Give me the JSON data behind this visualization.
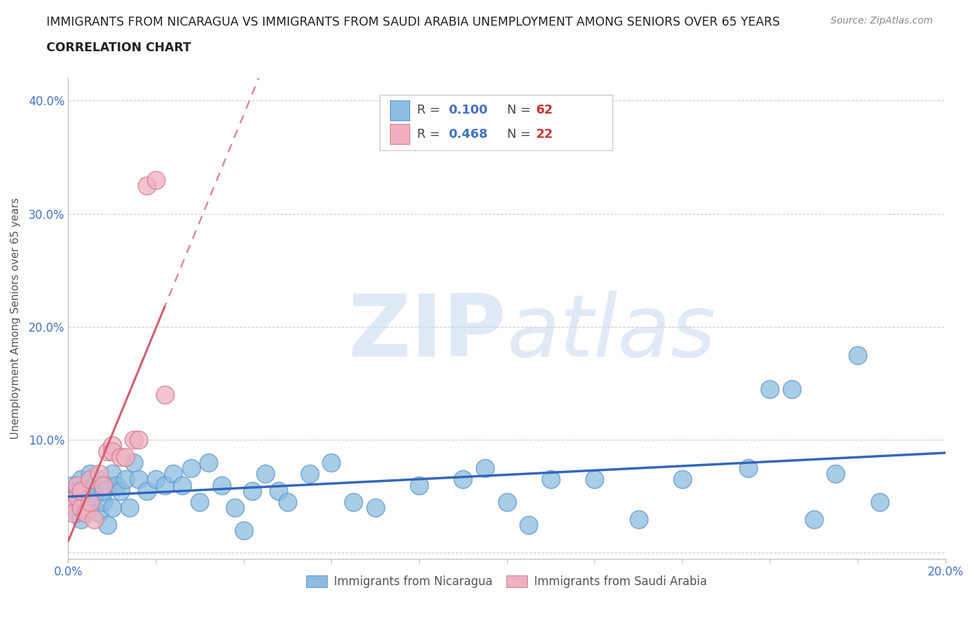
{
  "title_line1": "IMMIGRANTS FROM NICARAGUA VS IMMIGRANTS FROM SAUDI ARABIA UNEMPLOYMENT AMONG SENIORS OVER 65 YEARS",
  "title_line2": "CORRELATION CHART",
  "source_text": "Source: ZipAtlas.com",
  "ylabel": "Unemployment Among Seniors over 65 years",
  "xlim": [
    0.0,
    0.2
  ],
  "ylim": [
    -0.005,
    0.42
  ],
  "yticks": [
    0.0,
    0.1,
    0.2,
    0.3,
    0.4
  ],
  "ytick_labels": [
    "",
    "10.0%",
    "20.0%",
    "30.0%",
    "40.0%"
  ],
  "xticks": [
    0.0,
    0.02,
    0.04,
    0.06,
    0.08,
    0.1,
    0.12,
    0.14,
    0.16,
    0.18,
    0.2
  ],
  "xtick_show": [
    0.0,
    0.2
  ],
  "nicaragua_color": "#8BBDE0",
  "nicaragua_edge": "#6699CC",
  "saudi_color": "#F0B0C0",
  "saudi_edge": "#D08090",
  "reg_nicaragua_color": "#3366BB",
  "reg_saudi_color": "#D06070",
  "reg_saudi_dash_color": "#E08898",
  "legend_R_color": "#4472C4",
  "legend_N_color": "#CC3333",
  "watermark": "ZIPatlas",
  "watermark_color": "#C8D8F0",
  "background_color": "#FFFFFF",
  "grid_color": "#CCCCCC",
  "nicaragua_x": [
    0.0,
    0.001,
    0.001,
    0.002,
    0.002,
    0.003,
    0.003,
    0.004,
    0.004,
    0.005,
    0.005,
    0.006,
    0.006,
    0.007,
    0.007,
    0.008,
    0.008,
    0.009,
    0.009,
    0.01,
    0.01,
    0.011,
    0.012,
    0.013,
    0.014,
    0.015,
    0.016,
    0.018,
    0.02,
    0.022,
    0.024,
    0.026,
    0.028,
    0.03,
    0.032,
    0.035,
    0.038,
    0.04,
    0.042,
    0.045,
    0.048,
    0.05,
    0.055,
    0.06,
    0.065,
    0.07,
    0.08,
    0.09,
    0.095,
    0.1,
    0.105,
    0.11,
    0.12,
    0.13,
    0.14,
    0.155,
    0.16,
    0.165,
    0.17,
    0.175,
    0.18,
    0.185
  ],
  "nicaragua_y": [
    0.05,
    0.04,
    0.06,
    0.035,
    0.055,
    0.03,
    0.065,
    0.045,
    0.055,
    0.04,
    0.07,
    0.05,
    0.06,
    0.035,
    0.065,
    0.045,
    0.055,
    0.025,
    0.06,
    0.04,
    0.07,
    0.06,
    0.055,
    0.065,
    0.04,
    0.08,
    0.065,
    0.055,
    0.065,
    0.06,
    0.07,
    0.06,
    0.075,
    0.045,
    0.08,
    0.06,
    0.04,
    0.02,
    0.055,
    0.07,
    0.055,
    0.045,
    0.07,
    0.08,
    0.045,
    0.04,
    0.06,
    0.065,
    0.075,
    0.045,
    0.025,
    0.065,
    0.065,
    0.03,
    0.065,
    0.075,
    0.145,
    0.145,
    0.03,
    0.07,
    0.175,
    0.045
  ],
  "saudi_x": [
    0.0,
    0.001,
    0.002,
    0.002,
    0.003,
    0.003,
    0.004,
    0.005,
    0.005,
    0.006,
    0.007,
    0.008,
    0.009,
    0.01,
    0.01,
    0.012,
    0.013,
    0.015,
    0.016,
    0.018,
    0.02,
    0.022
  ],
  "saudi_y": [
    0.045,
    0.035,
    0.05,
    0.06,
    0.04,
    0.055,
    0.035,
    0.045,
    0.065,
    0.03,
    0.07,
    0.06,
    0.09,
    0.095,
    0.09,
    0.085,
    0.085,
    0.1,
    0.1,
    0.325,
    0.33,
    0.14
  ]
}
